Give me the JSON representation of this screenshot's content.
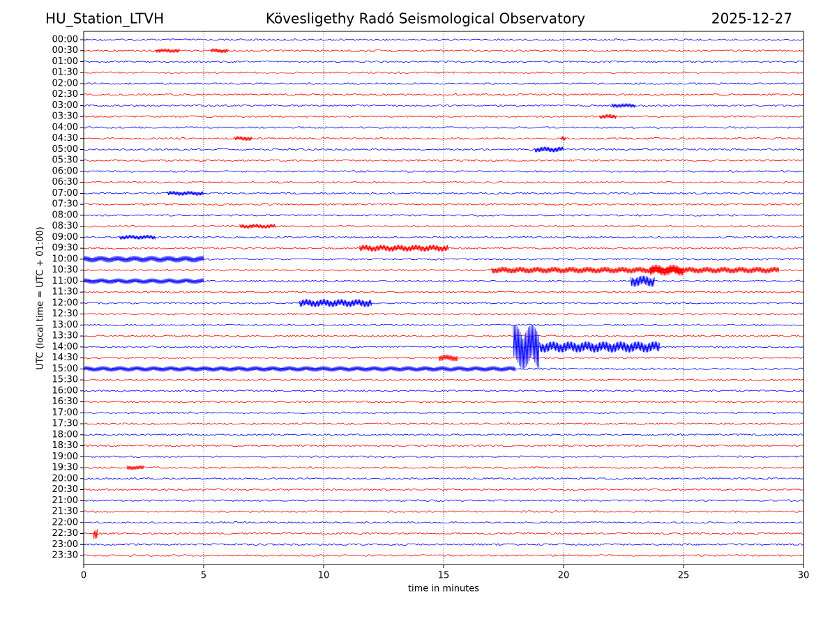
{
  "chart_data": {
    "type": "helicorder",
    "title": "Kövesligethy Radó Seismological Observatory",
    "station": "HU_Station_LTVH",
    "date": "2025-12-27",
    "y_label": "UTC (local time = UTC + 01:00)",
    "x_label": "time in minutes",
    "categories": [
      "00:00",
      "00:30",
      "01:00",
      "01:30",
      "02:00",
      "02:30",
      "03:00",
      "03:30",
      "04:00",
      "04:30",
      "05:00",
      "05:30",
      "06:00",
      "06:30",
      "07:00",
      "07:30",
      "08:00",
      "08:30",
      "09:00",
      "09:30",
      "10:00",
      "10:30",
      "11:00",
      "11:30",
      "12:00",
      "12:30",
      "13:00",
      "13:30",
      "14:00",
      "14:30",
      "15:00",
      "15:30",
      "16:00",
      "16:30",
      "17:00",
      "17:30",
      "18:00",
      "18:30",
      "19:00",
      "19:30",
      "20:00",
      "20:30",
      "21:00",
      "21:30",
      "22:00",
      "22:30",
      "23:00",
      "23:30"
    ],
    "colors": [
      "#0000ff",
      "#ff0000"
    ],
    "xlim": [
      0,
      30
    ],
    "xticks": [
      0,
      5,
      10,
      15,
      20,
      25,
      30
    ],
    "grid": true,
    "noise_level": 0.08,
    "events": [
      {
        "row": 1,
        "start": 3,
        "end": 4,
        "amplitude": 0.15
      },
      {
        "row": 1,
        "start": 5.3,
        "end": 6,
        "amplitude": 0.2
      },
      {
        "row": 6,
        "start": 22,
        "end": 23,
        "amplitude": 0.15
      },
      {
        "row": 7,
        "start": 21.5,
        "end": 22.2,
        "amplitude": 0.2
      },
      {
        "row": 9,
        "start": 6.3,
        "end": 7,
        "amplitude": 0.2
      },
      {
        "row": 9,
        "start": 19.9,
        "end": 20.1,
        "amplitude": 0.2
      },
      {
        "row": 10,
        "start": 18.8,
        "end": 20,
        "amplitude": 0.25
      },
      {
        "row": 14,
        "start": 3.5,
        "end": 5,
        "amplitude": 0.2
      },
      {
        "row": 17,
        "start": 6.5,
        "end": 8,
        "amplitude": 0.2
      },
      {
        "row": 18,
        "start": 1.5,
        "end": 3,
        "amplitude": 0.2
      },
      {
        "row": 19,
        "start": 11.5,
        "end": 15.2,
        "amplitude": 0.3
      },
      {
        "row": 20,
        "start": 0,
        "end": 5,
        "amplitude": 0.3
      },
      {
        "row": 21,
        "start": 17,
        "end": 29,
        "amplitude": 0.3
      },
      {
        "row": 21,
        "start": 23.6,
        "end": 25,
        "amplitude": 0.5
      },
      {
        "row": 22,
        "start": 0,
        "end": 5,
        "amplitude": 0.25
      },
      {
        "row": 22,
        "start": 22.8,
        "end": 23.8,
        "amplitude": 0.5
      },
      {
        "row": 24,
        "start": 9,
        "end": 12,
        "amplitude": 0.35
      },
      {
        "row": 28,
        "start": 17.9,
        "end": 19,
        "amplitude": 2
      },
      {
        "row": 28,
        "start": 19,
        "end": 24,
        "amplitude": 0.5
      },
      {
        "row": 29,
        "start": 14.8,
        "end": 15.6,
        "amplitude": 0.3
      },
      {
        "row": 30,
        "start": 0,
        "end": 18,
        "amplitude": 0.25
      },
      {
        "row": 39,
        "start": 1.8,
        "end": 2.5,
        "amplitude": 0.2
      },
      {
        "row": 45,
        "start": 0.4,
        "end": 0.6,
        "amplitude": 0.5
      }
    ]
  }
}
